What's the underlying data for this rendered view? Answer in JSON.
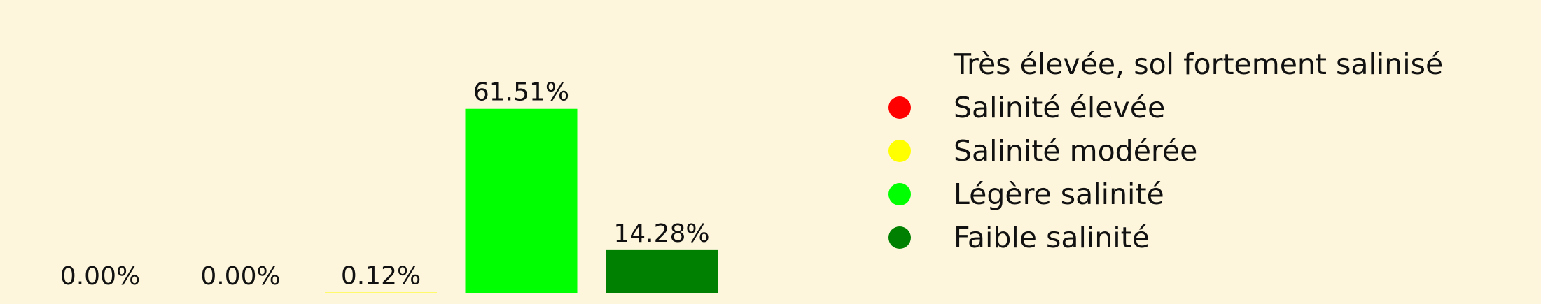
{
  "chart_data": {
    "type": "bar",
    "categories": [
      "Très élevée, sol fortement salinisé",
      "Salinité élevée",
      "Salinité modérée",
      "Légère salinité",
      "Faible salinité"
    ],
    "values": [
      0.0,
      0.0,
      0.12,
      61.51,
      14.28
    ],
    "value_labels": [
      "0.00%",
      "0.00%",
      "0.12%",
      "61.51%",
      "14.28%"
    ],
    "colors": [
      "#fdf6dc",
      "#ff0000",
      "#ffff00",
      "#00ff00",
      "#008000"
    ],
    "ylim": [
      0,
      75
    ],
    "grid": false,
    "legend_position": "right",
    "legend": [
      {
        "label": "Très élevée, sol fortement salinisé",
        "color": "#fdf6dc"
      },
      {
        "label": "Salinité élevée",
        "color": "#ff0000"
      },
      {
        "label": "Salinité modérée",
        "color": "#ffff00"
      },
      {
        "label": "Légère salinité",
        "color": "#00ff00"
      },
      {
        "label": "Faible salinité",
        "color": "#008000"
      }
    ]
  }
}
